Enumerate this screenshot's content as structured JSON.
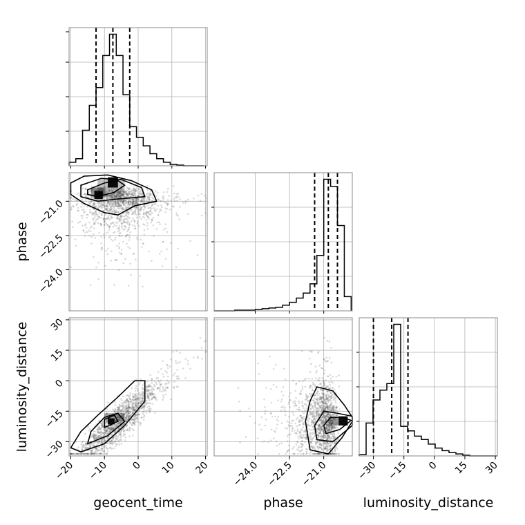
{
  "chart_data": {
    "type": "scatter",
    "subtype": "corner-plot",
    "parameters": [
      "geocent_time",
      "phase",
      "luminosity_distance"
    ],
    "axis_labels": {
      "geocent_time": "geocent_time",
      "phase": "phase",
      "luminosity_distance": "luminosity_distance"
    },
    "ranges": {
      "geocent_time": [
        -20.5,
        20.5
      ],
      "phase": [
        -25.8,
        -19.75
      ],
      "luminosity_distance": [
        -37,
        31
      ]
    },
    "ticks": {
      "geocent_time": [
        -20,
        -10,
        0,
        10,
        20
      ],
      "phase": [
        -24.0,
        -22.5,
        -21.0
      ],
      "luminosity_distance": [
        -30,
        -15,
        0,
        15,
        30
      ]
    },
    "tick_labels": {
      "geocent_time": [
        "−20",
        "−10",
        "0",
        "10",
        "20"
      ],
      "phase": [
        "−24.0",
        "−22.5",
        "−21.0"
      ],
      "luminosity_distance": [
        "−30",
        "−15",
        "0",
        "15",
        "30"
      ]
    },
    "quantiles": {
      "geocent_time": [
        -12.5,
        -7.5,
        -2.5
      ],
      "phase": [
        -21.4,
        -20.8,
        -20.4
      ],
      "luminosity_distance": [
        -30,
        -21,
        -13
      ]
    },
    "histograms": {
      "geocent_time": {
        "edges": [
          -20.5,
          -18.5,
          -16.5,
          -14.5,
          -12.5,
          -10.5,
          -8.5,
          -6.5,
          -4.5,
          -2.5,
          -0.5,
          1.5,
          3.5,
          5.5,
          7.5,
          9.5,
          11.5,
          13.5,
          15.5,
          17.5,
          19.5
        ],
        "counts": [
          5,
          10,
          50,
          85,
          110,
          155,
          185,
          155,
          100,
          55,
          40,
          28,
          17,
          10,
          5,
          2,
          1,
          0,
          0,
          0
        ]
      },
      "phase": {
        "edges": [
          -25.8,
          -25.5,
          -25.2,
          -24.9,
          -24.6,
          -24.3,
          -24.0,
          -23.7,
          -23.4,
          -23.1,
          -22.8,
          -22.5,
          -22.2,
          -21.9,
          -21.6,
          -21.3,
          -21.0,
          -20.7,
          -20.4,
          -20.1,
          -19.8
        ],
        "counts": [
          0,
          0,
          0,
          1,
          1,
          1,
          2,
          3,
          4,
          5,
          8,
          12,
          18,
          25,
          38,
          78,
          185,
          175,
          120,
          20
        ]
      },
      "luminosity_distance": {
        "edges": [
          -37,
          -33.6,
          -30.2,
          -26.8,
          -23.4,
          -20,
          -16.6,
          -13.2,
          -9.8,
          -6.4,
          -3,
          0.4,
          3.8,
          7.2,
          10.6,
          14,
          17.4,
          20.8,
          24.2,
          27.6,
          31
        ],
        "counts": [
          2,
          50,
          85,
          100,
          110,
          200,
          45,
          38,
          30,
          25,
          18,
          12,
          8,
          5,
          3,
          1,
          0,
          0,
          0,
          0
        ]
      }
    },
    "grid": true
  }
}
